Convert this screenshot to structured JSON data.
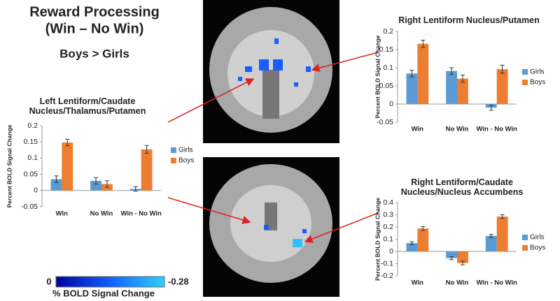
{
  "header": {
    "title": "Reward Processing",
    "subtitle": "(Win – No Win)",
    "contrast": "Boys > Girls"
  },
  "colorbar": {
    "ends": [
      "0",
      "-0.28"
    ],
    "label": "% BOLD Signal Change"
  },
  "chart_data": [
    {
      "type": "bar",
      "title": "Left Lentiform/Caudate Nucleus/Thalamus/Putamen",
      "y_label": "Percent BOLD Signal Change",
      "categories": [
        "Win",
        "No Win",
        "Win - No Win"
      ],
      "series": [
        {
          "name": "Girls",
          "color": "#5b9bd5",
          "values": [
            0.035,
            0.03,
            0.005
          ],
          "errors": [
            0.01,
            0.01,
            0.007
          ]
        },
        {
          "name": "Boys",
          "color": "#ed7d31",
          "values": [
            0.148,
            0.02,
            0.127
          ],
          "errors": [
            0.01,
            0.01,
            0.012
          ]
        }
      ],
      "ylim": [
        -0.05,
        0.2
      ],
      "yticks": [
        -0.05,
        0,
        0.05,
        0.1,
        0.15,
        0.2
      ]
    },
    {
      "type": "bar",
      "title": "Right Lentiform Nucleus/Putamen",
      "y_label": "Percent BOLD Signal Change",
      "categories": [
        "Win",
        "No Win",
        "Win - No Win"
      ],
      "series": [
        {
          "name": "Girls",
          "color": "#5b9bd5",
          "values": [
            0.084,
            0.091,
            -0.01
          ],
          "errors": [
            0.009,
            0.009,
            0.007
          ]
        },
        {
          "name": "Boys",
          "color": "#ed7d31",
          "values": [
            0.166,
            0.07,
            0.096
          ],
          "errors": [
            0.01,
            0.01,
            0.011
          ]
        }
      ],
      "ylim": [
        -0.05,
        0.2
      ],
      "yticks": [
        -0.05,
        0,
        0.05,
        0.1,
        0.15,
        0.2
      ]
    },
    {
      "type": "bar",
      "title": "Right Lentiform/Caudate Nucleus/Nucleus Accumbens",
      "y_label": "Percent BOLD Signal Change",
      "categories": [
        "Win",
        "No Win",
        "Win - No Win"
      ],
      "series": [
        {
          "name": "Girls",
          "color": "#5b9bd5",
          "values": [
            0.068,
            -0.055,
            0.127
          ],
          "errors": [
            0.012,
            0.012,
            0.012
          ]
        },
        {
          "name": "Boys",
          "color": "#ed7d31",
          "values": [
            0.187,
            -0.095,
            0.285
          ],
          "errors": [
            0.015,
            0.015,
            0.015
          ]
        }
      ],
      "ylim": [
        -0.2,
        0.4
      ],
      "yticks": [
        -0.2,
        -0.1,
        0,
        0.1,
        0.2,
        0.3,
        0.4
      ]
    }
  ]
}
